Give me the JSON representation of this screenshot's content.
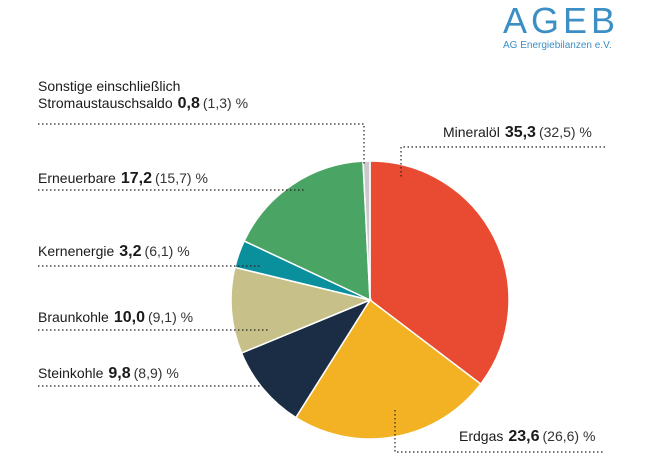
{
  "logo": {
    "name": "AGEB",
    "subtitle": "AG Energiebilanzen e.V."
  },
  "chart_data": {
    "type": "pie",
    "value_unit": "%",
    "slices": [
      {
        "label": "Mineralöl",
        "value": 35.3,
        "prev": "(32,5)",
        "value_text": "35,3",
        "color": "#e84b31"
      },
      {
        "label": "Erdgas",
        "value": 23.6,
        "prev": "(26,6)",
        "value_text": "23,6",
        "color": "#f2b224"
      },
      {
        "label": "Steinkohle",
        "value": 9.8,
        "prev": "(8,9)",
        "value_text": "9,8",
        "color": "#1b2d44"
      },
      {
        "label": "Braunkohle",
        "value": 10.0,
        "prev": "(9,1)",
        "value_text": "10,0",
        "color": "#c7c189"
      },
      {
        "label": "Kernenergie",
        "value": 3.2,
        "prev": "(6,1)",
        "value_text": "3,2",
        "color": "#0a8f9c"
      },
      {
        "label": "Erneuerbare",
        "value": 17.2,
        "prev": "(15,7)",
        "value_text": "17,2",
        "color": "#4aa463"
      },
      {
        "label": "Sonstige einschließlich Stromaustauschsaldo",
        "label_line1": "Sonstige einschließlich",
        "label_line2": "Stromaustauschsaldo",
        "value": 0.8,
        "prev": "(1,3)",
        "value_text": "0,8",
        "color": "#c9c9c9"
      }
    ]
  }
}
